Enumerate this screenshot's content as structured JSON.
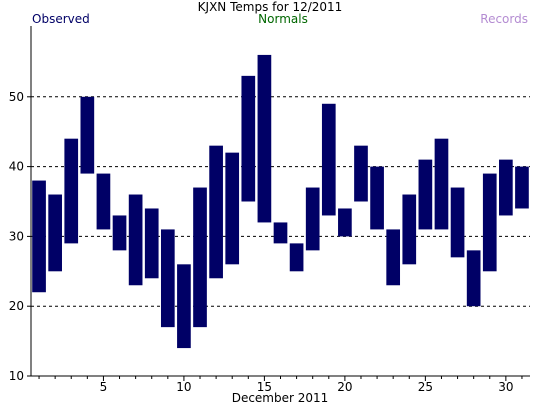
{
  "chart_data": {
    "type": "bar",
    "title": "KJXN Temps for 12/2011",
    "xlabel": "December 2011",
    "ylabel": "",
    "legend": [
      {
        "name": "Observed",
        "color": "#000066"
      },
      {
        "name": "Normals",
        "color": "#006600"
      },
      {
        "name": "Records",
        "color": "#b48cd2"
      }
    ],
    "x": [
      1,
      2,
      3,
      4,
      5,
      6,
      7,
      8,
      9,
      10,
      11,
      12,
      13,
      14,
      15,
      16,
      17,
      18,
      19,
      20,
      21,
      22,
      23,
      24,
      25,
      26,
      27,
      28,
      29,
      30,
      31
    ],
    "series": [
      {
        "name": "Observed",
        "color": "#000066",
        "low": [
          22,
          25,
          29,
          39,
          31,
          28,
          23,
          24,
          17,
          14,
          17,
          24,
          26,
          35,
          32,
          29,
          25,
          28,
          33,
          30,
          35,
          31,
          23,
          26,
          31,
          31,
          27,
          20,
          25,
          33,
          34
        ],
        "high": [
          38,
          36,
          44,
          50,
          39,
          33,
          36,
          34,
          31,
          26,
          37,
          43,
          42,
          53,
          56,
          32,
          29,
          37,
          49,
          34,
          43,
          40,
          31,
          36,
          41,
          44,
          37,
          28,
          39,
          41,
          40
        ]
      }
    ],
    "xticks": [
      5,
      10,
      15,
      20,
      25,
      30
    ],
    "yticks": [
      10,
      20,
      30,
      40,
      50
    ],
    "xlim": [
      0.5,
      31.5
    ],
    "ylim": [
      10,
      60
    ],
    "grid": "horizontal-dashed"
  }
}
